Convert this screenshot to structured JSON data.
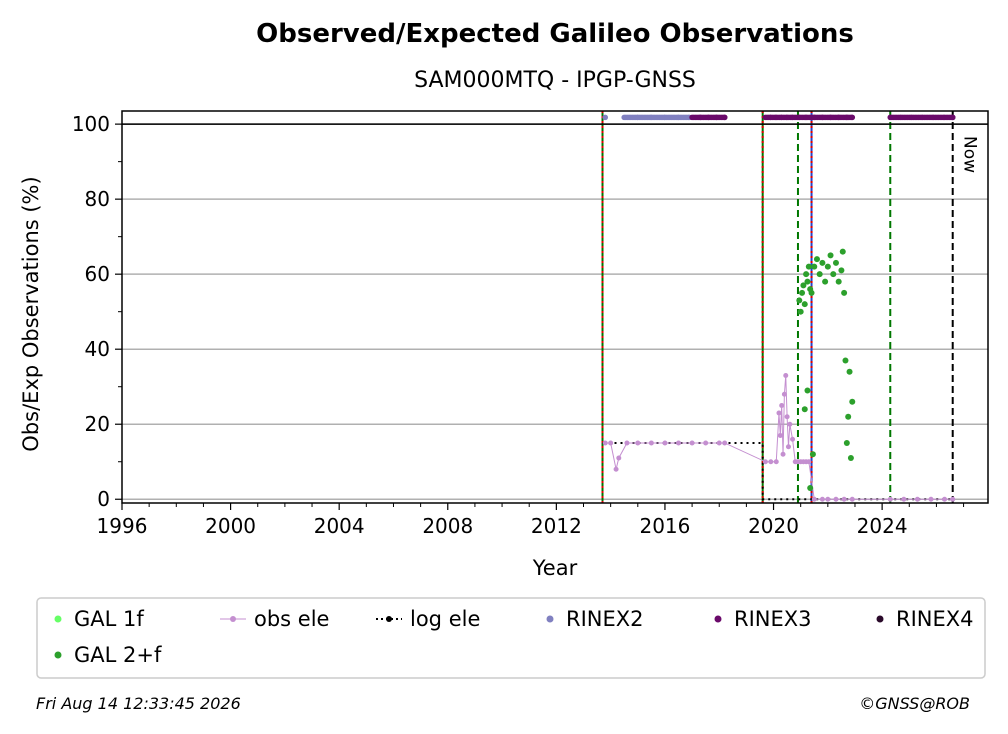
{
  "colors": {
    "gal1f": "#66ff66",
    "gal2f": "#2ca02c",
    "obs_ele": "#c48fd0",
    "log_ele": "#000000",
    "rinex2": "#8080c0",
    "rinex3": "#6a0a6a",
    "rinex4": "#2a0a2a",
    "green_line": "#007700",
    "red_line": "#dd0000",
    "blue_line": "#2244cc"
  },
  "footer": {
    "timestamp": "Fri Aug 14 12:33:45 2026",
    "credit": "©GNSS@ROB"
  },
  "chart_data": {
    "type": "scatter",
    "title": "Observed/Expected Galileo Observations",
    "subtitle": "SAM000MTQ - IPGP-GNSS",
    "xlabel": "Year",
    "ylabel": "Obs/Exp Observations (%)",
    "xlim": [
      1996,
      2027.9
    ],
    "ylim": [
      -1,
      103.5
    ],
    "xticks": [
      1996,
      2000,
      2004,
      2008,
      2012,
      2016,
      2020,
      2024
    ],
    "yticks": [
      0,
      20,
      40,
      60,
      80,
      100
    ],
    "grid": "horizontal",
    "now_label": "Now",
    "now_year": 2026.6,
    "legend": {
      "placement": "bottom",
      "entries": [
        {
          "key": "gal1f",
          "label": "GAL 1f",
          "style": "dot"
        },
        {
          "key": "obs_ele",
          "label": "obs ele",
          "style": "line-dot"
        },
        {
          "key": "log_ele",
          "label": "log ele",
          "style": "dotted-line"
        },
        {
          "key": "rinex2",
          "label": "RINEX2",
          "style": "dot"
        },
        {
          "key": "rinex3",
          "label": "RINEX3",
          "style": "dot"
        },
        {
          "key": "rinex4",
          "label": "RINEX4",
          "style": "dot"
        },
        {
          "key": "gal2f",
          "label": "GAL 2+f",
          "style": "dot"
        }
      ]
    },
    "vertical_lines": [
      {
        "x": 2013.7,
        "color": "green_line",
        "style": "solid"
      },
      {
        "x": 2013.7,
        "color": "red_line",
        "style": "dotted"
      },
      {
        "x": 2019.6,
        "color": "green_line",
        "style": "solid"
      },
      {
        "x": 2019.6,
        "color": "red_line",
        "style": "dotted"
      },
      {
        "x": 2020.9,
        "color": "green_line",
        "style": "dashed"
      },
      {
        "x": 2021.4,
        "color": "blue_line",
        "style": "solid"
      },
      {
        "x": 2021.4,
        "color": "red_line",
        "style": "dotted"
      },
      {
        "x": 2024.3,
        "color": "green_line",
        "style": "dashed"
      },
      {
        "x": 2026.6,
        "color": "log_ele",
        "style": "dashed"
      }
    ],
    "series": [
      {
        "key": "log_ele",
        "name": "log ele",
        "x": [
          2013.7,
          2019.6,
          2019.6,
          2026.6
        ],
        "y": [
          15,
          15,
          0,
          0
        ]
      },
      {
        "key": "obs_ele",
        "name": "obs ele",
        "x": [
          2013.8,
          2014.0,
          2014.2,
          2014.3,
          2014.6,
          2015.0,
          2015.5,
          2016.0,
          2016.5,
          2017.0,
          2017.5,
          2018.0,
          2018.2,
          2019.7,
          2019.9,
          2020.1,
          2020.2,
          2020.25,
          2020.3,
          2020.35,
          2020.4,
          2020.45,
          2020.5,
          2020.55,
          2020.6,
          2020.7,
          2020.8,
          2020.9,
          2021.0,
          2021.1,
          2021.2,
          2021.3,
          2021.5,
          2021.8,
          2022.0,
          2022.3,
          2022.6,
          2022.9,
          2024.3,
          2024.8,
          2025.3,
          2025.8,
          2026.3,
          2026.6
        ],
        "y": [
          15,
          15,
          8,
          11,
          15,
          15,
          15,
          15,
          15,
          15,
          15,
          15,
          15,
          10,
          10,
          10,
          23,
          17,
          25,
          12,
          28,
          33,
          22,
          14,
          20,
          16,
          10,
          10,
          10,
          10,
          10,
          10,
          0,
          0,
          0,
          0,
          0,
          0,
          0,
          0,
          0,
          0,
          0,
          0
        ]
      },
      {
        "key": "gal2f",
        "name": "GAL 2+f",
        "x": [
          2020.95,
          2021.0,
          2021.05,
          2021.1,
          2021.15,
          2021.2,
          2021.25,
          2021.3,
          2021.35,
          2021.4,
          2021.5,
          2021.6,
          2021.7,
          2021.8,
          2021.9,
          2022.0,
          2022.1,
          2022.2,
          2022.3,
          2022.4,
          2022.5,
          2022.55,
          2022.6,
          2022.65,
          2022.7,
          2022.75,
          2022.8,
          2022.85,
          2022.9,
          2021.15,
          2021.25,
          2021.35,
          2021.45
        ],
        "y": [
          53,
          50,
          55,
          57,
          52,
          60,
          58,
          62,
          56,
          55,
          62,
          64,
          60,
          63,
          58,
          62,
          65,
          60,
          63,
          58,
          61,
          66,
          55,
          37,
          15,
          22,
          34,
          11,
          26,
          24,
          29,
          3,
          12
        ]
      },
      {
        "key": "rinex2",
        "name": "RINEX2",
        "x": [
          2013.8,
          2014.5,
          2015.0,
          2015.5,
          2016.0,
          2016.5,
          2016.9
        ],
        "y": [
          101.8,
          101.8,
          101.8,
          101.8,
          101.8,
          101.8,
          101.8
        ]
      },
      {
        "key": "rinex3",
        "name": "RINEX3",
        "x": [
          2017.0,
          2017.3,
          2017.6,
          2017.9,
          2018.2,
          2019.7,
          2019.9,
          2020.1,
          2020.3,
          2020.5,
          2020.7,
          2020.95,
          2021.2,
          2021.5,
          2021.8,
          2022.1,
          2022.4,
          2022.7,
          2022.9,
          2024.3,
          2024.7,
          2025.1,
          2025.5,
          2025.9,
          2026.3,
          2026.6
        ],
        "y": [
          101.8,
          101.8,
          101.8,
          101.8,
          101.8,
          101.8,
          101.8,
          101.8,
          101.8,
          101.8,
          101.8,
          101.8,
          101.8,
          101.8,
          101.8,
          101.8,
          101.8,
          101.8,
          101.8,
          101.8,
          101.8,
          101.8,
          101.8,
          101.8,
          101.8,
          101.8
        ]
      }
    ]
  }
}
